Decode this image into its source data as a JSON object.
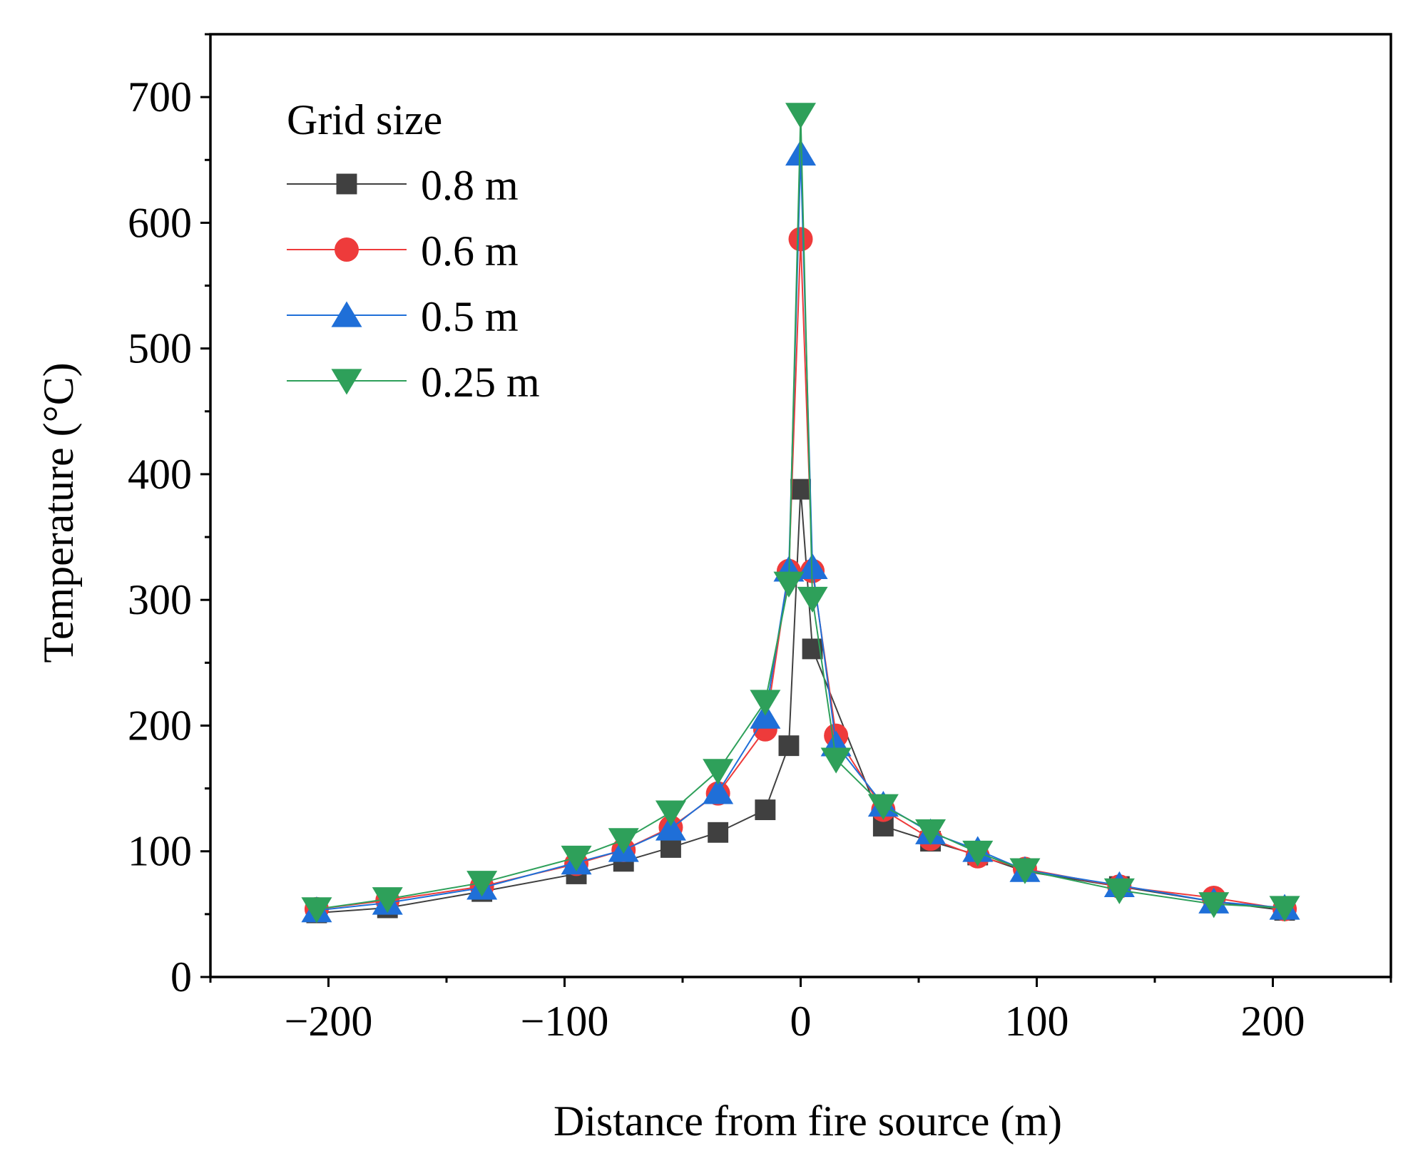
{
  "chart_data": {
    "type": "line",
    "title": "",
    "xlabel": "Distance from fire source (m)",
    "ylabel": "Temperature (°C)",
    "xlim": [
      -250,
      250
    ],
    "ylim": [
      0,
      750
    ],
    "xticks": [
      -200,
      -100,
      0,
      100,
      200
    ],
    "xtick_labels": [
      "−200",
      "−100",
      "0",
      "100",
      "200"
    ],
    "yticks": [
      0,
      100,
      200,
      300,
      400,
      500,
      600,
      700
    ],
    "ytick_labels": [
      "0",
      "100",
      "200",
      "300",
      "400",
      "500",
      "600",
      "700"
    ],
    "grid": false,
    "legend": {
      "title": "Grid size",
      "position": "top-left"
    },
    "series": [
      {
        "name": "0.8 m",
        "color": "#404040",
        "marker": "square",
        "x": [
          -205,
          -175,
          -135,
          -95,
          -75,
          -55,
          -35,
          -15,
          -5,
          0,
          5,
          35,
          55,
          75,
          95,
          135,
          175,
          205
        ],
        "y": [
          51,
          55,
          68,
          82,
          92,
          103,
          115,
          133,
          184,
          388,
          261,
          120,
          108,
          97,
          84,
          72,
          60,
          53
        ]
      },
      {
        "name": "0.6 m",
        "color": "#ee3b3b",
        "marker": "circle",
        "x": [
          -205,
          -175,
          -135,
          -95,
          -75,
          -55,
          -35,
          -15,
          -5,
          0,
          5,
          15,
          35,
          55,
          75,
          95,
          135,
          175,
          205
        ],
        "y": [
          54,
          61,
          72,
          90,
          101,
          119,
          146,
          197,
          323,
          587,
          323,
          192,
          133,
          110,
          96,
          86,
          72,
          63,
          54
        ]
      },
      {
        "name": "0.5 m",
        "color": "#1f6fd8",
        "marker": "triangle-up",
        "x": [
          -205,
          -175,
          -135,
          -95,
          -75,
          -55,
          -35,
          -15,
          -5,
          0,
          5,
          15,
          35,
          55,
          75,
          95,
          135,
          175,
          205
        ],
        "y": [
          53,
          59,
          71,
          91,
          101,
          118,
          147,
          207,
          324,
          655,
          326,
          185,
          137,
          115,
          101,
          85,
          73,
          60,
          55
        ]
      },
      {
        "name": "0.25 m",
        "color": "#2ea05a",
        "marker": "triangle-down",
        "x": [
          -205,
          -175,
          -135,
          -95,
          -75,
          -55,
          -35,
          -15,
          -5,
          0,
          5,
          15,
          35,
          55,
          75,
          95,
          135,
          175,
          205
        ],
        "y": [
          54,
          62,
          75,
          95,
          109,
          131,
          164,
          219,
          313,
          686,
          301,
          173,
          136,
          116,
          99,
          85,
          69,
          58,
          55
        ]
      }
    ]
  }
}
